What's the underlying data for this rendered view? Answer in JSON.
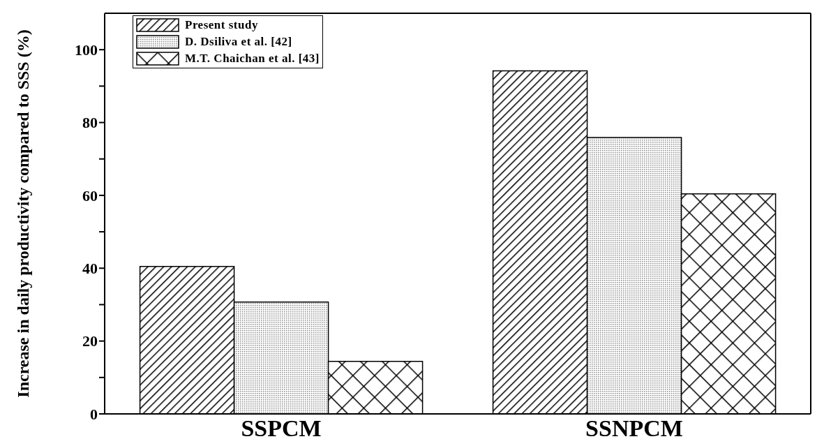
{
  "chart_data": {
    "type": "bar",
    "ylabel": "Increase in daily productivity compared to SSS (%)",
    "categories": [
      "SSPCM",
      "SSNPCM"
    ],
    "series": [
      {
        "name": "Present study",
        "color": "#000000",
        "values": [
          40.5,
          94.2
        ]
      },
      {
        "name": "D. Dsiliva et al. [42]",
        "color": "#000000",
        "values": [
          30.7,
          75.9
        ]
      },
      {
        "name": "M.T. Chaichan et al. [43]",
        "color": "#000000",
        "values": [
          14.4,
          60.4
        ]
      }
    ],
    "ylim": [
      0,
      110
    ],
    "yticks": [
      0,
      {
        "value": 10,
        "label": null
      },
      20,
      {
        "value": 30,
        "label": null
      },
      40,
      {
        "value": 50,
        "label": null
      },
      60,
      {
        "value": 70,
        "label": null
      },
      80,
      {
        "value": 90,
        "label": null
      },
      100
    ],
    "grid": false,
    "legend": "top left"
  }
}
